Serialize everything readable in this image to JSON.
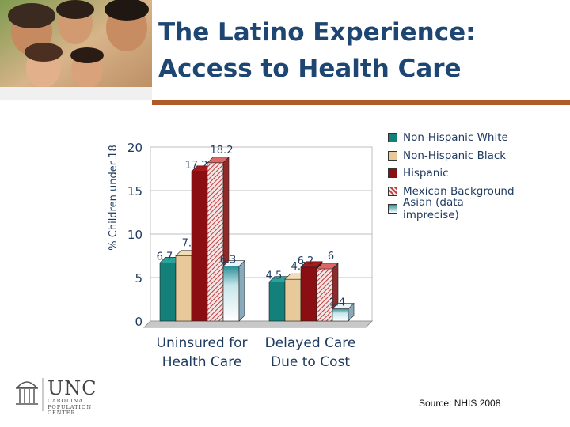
{
  "slide": {
    "title_lines": [
      "The Latino Experience:",
      "Access to Health Care"
    ],
    "source": "Source: NHIS 2008"
  },
  "logo": {
    "name": "UNC",
    "sub1": "CAROLINA",
    "sub2": "POPULATION",
    "sub3": "CENTER"
  },
  "colors": {
    "title": "#1e4673",
    "rule": "#b15a2a",
    "non_hispanic_white": "#13807a",
    "non_hispanic_black": "#e8c99a",
    "hispanic": "#8b0f12",
    "mexican": "#c23b3b",
    "asian": "#c7e6ea"
  },
  "chart_data": {
    "type": "bar",
    "ylabel": "% Children under 18",
    "xlabel": "",
    "ylim": [
      0,
      20
    ],
    "yticks": [
      0,
      5,
      10,
      15,
      20
    ],
    "categories": [
      "Uninsured for Health Care",
      "Delayed Care Due to Cost"
    ],
    "category_lines": [
      [
        "Uninsured for",
        "Health Care"
      ],
      [
        "Delayed Care",
        "Due to Cost"
      ]
    ],
    "series": [
      {
        "name": "Non-Hispanic White",
        "values": [
          6.7,
          4.5
        ]
      },
      {
        "name": "Non-Hispanic Black",
        "values": [
          7.5,
          4.8
        ]
      },
      {
        "name": "Hispanic",
        "values": [
          17.2,
          6.2
        ]
      },
      {
        "name": "Mexican Background",
        "values": [
          18.2,
          6
        ]
      },
      {
        "name": "Asian (data imprecise)",
        "values": [
          6.3,
          1.4
        ]
      }
    ],
    "legend": "right"
  }
}
